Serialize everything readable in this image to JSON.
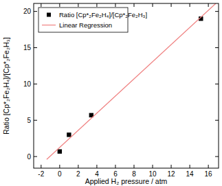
{
  "chart_data": {
    "type": "scatter",
    "x_label": "Applied H₂ pressure / atm",
    "y_label": "Ratio [Cp*₂Fe₂H₄]/[Cp*₂Fe₂H₃]",
    "xlim": [
      -2.8,
      17.1
    ],
    "xticks": [
      -2,
      0,
      2,
      4,
      6,
      8,
      10,
      12,
      14,
      16
    ],
    "ylim": [
      -1.6,
      21.1
    ],
    "yticks": [
      0,
      5,
      10,
      15,
      20
    ],
    "grid": false,
    "legend": "upper left",
    "series": [
      {
        "name": "Ratio [Cp*₂Fe₂H₄]/[Cp*₂Fe₂H₃]",
        "type": "scatter",
        "marker": "square",
        "color": "#000000",
        "x": [
          0,
          1,
          3.4,
          15.2
        ],
        "values": [
          0.7,
          3.0,
          5.7,
          19.0
        ]
      },
      {
        "name": "Linear Regression",
        "type": "line",
        "line_style": "solid",
        "color": "#f08080",
        "x": [
          -1.4,
          16.8
        ],
        "values": [
          -0.4,
          21.1
        ]
      }
    ]
  }
}
